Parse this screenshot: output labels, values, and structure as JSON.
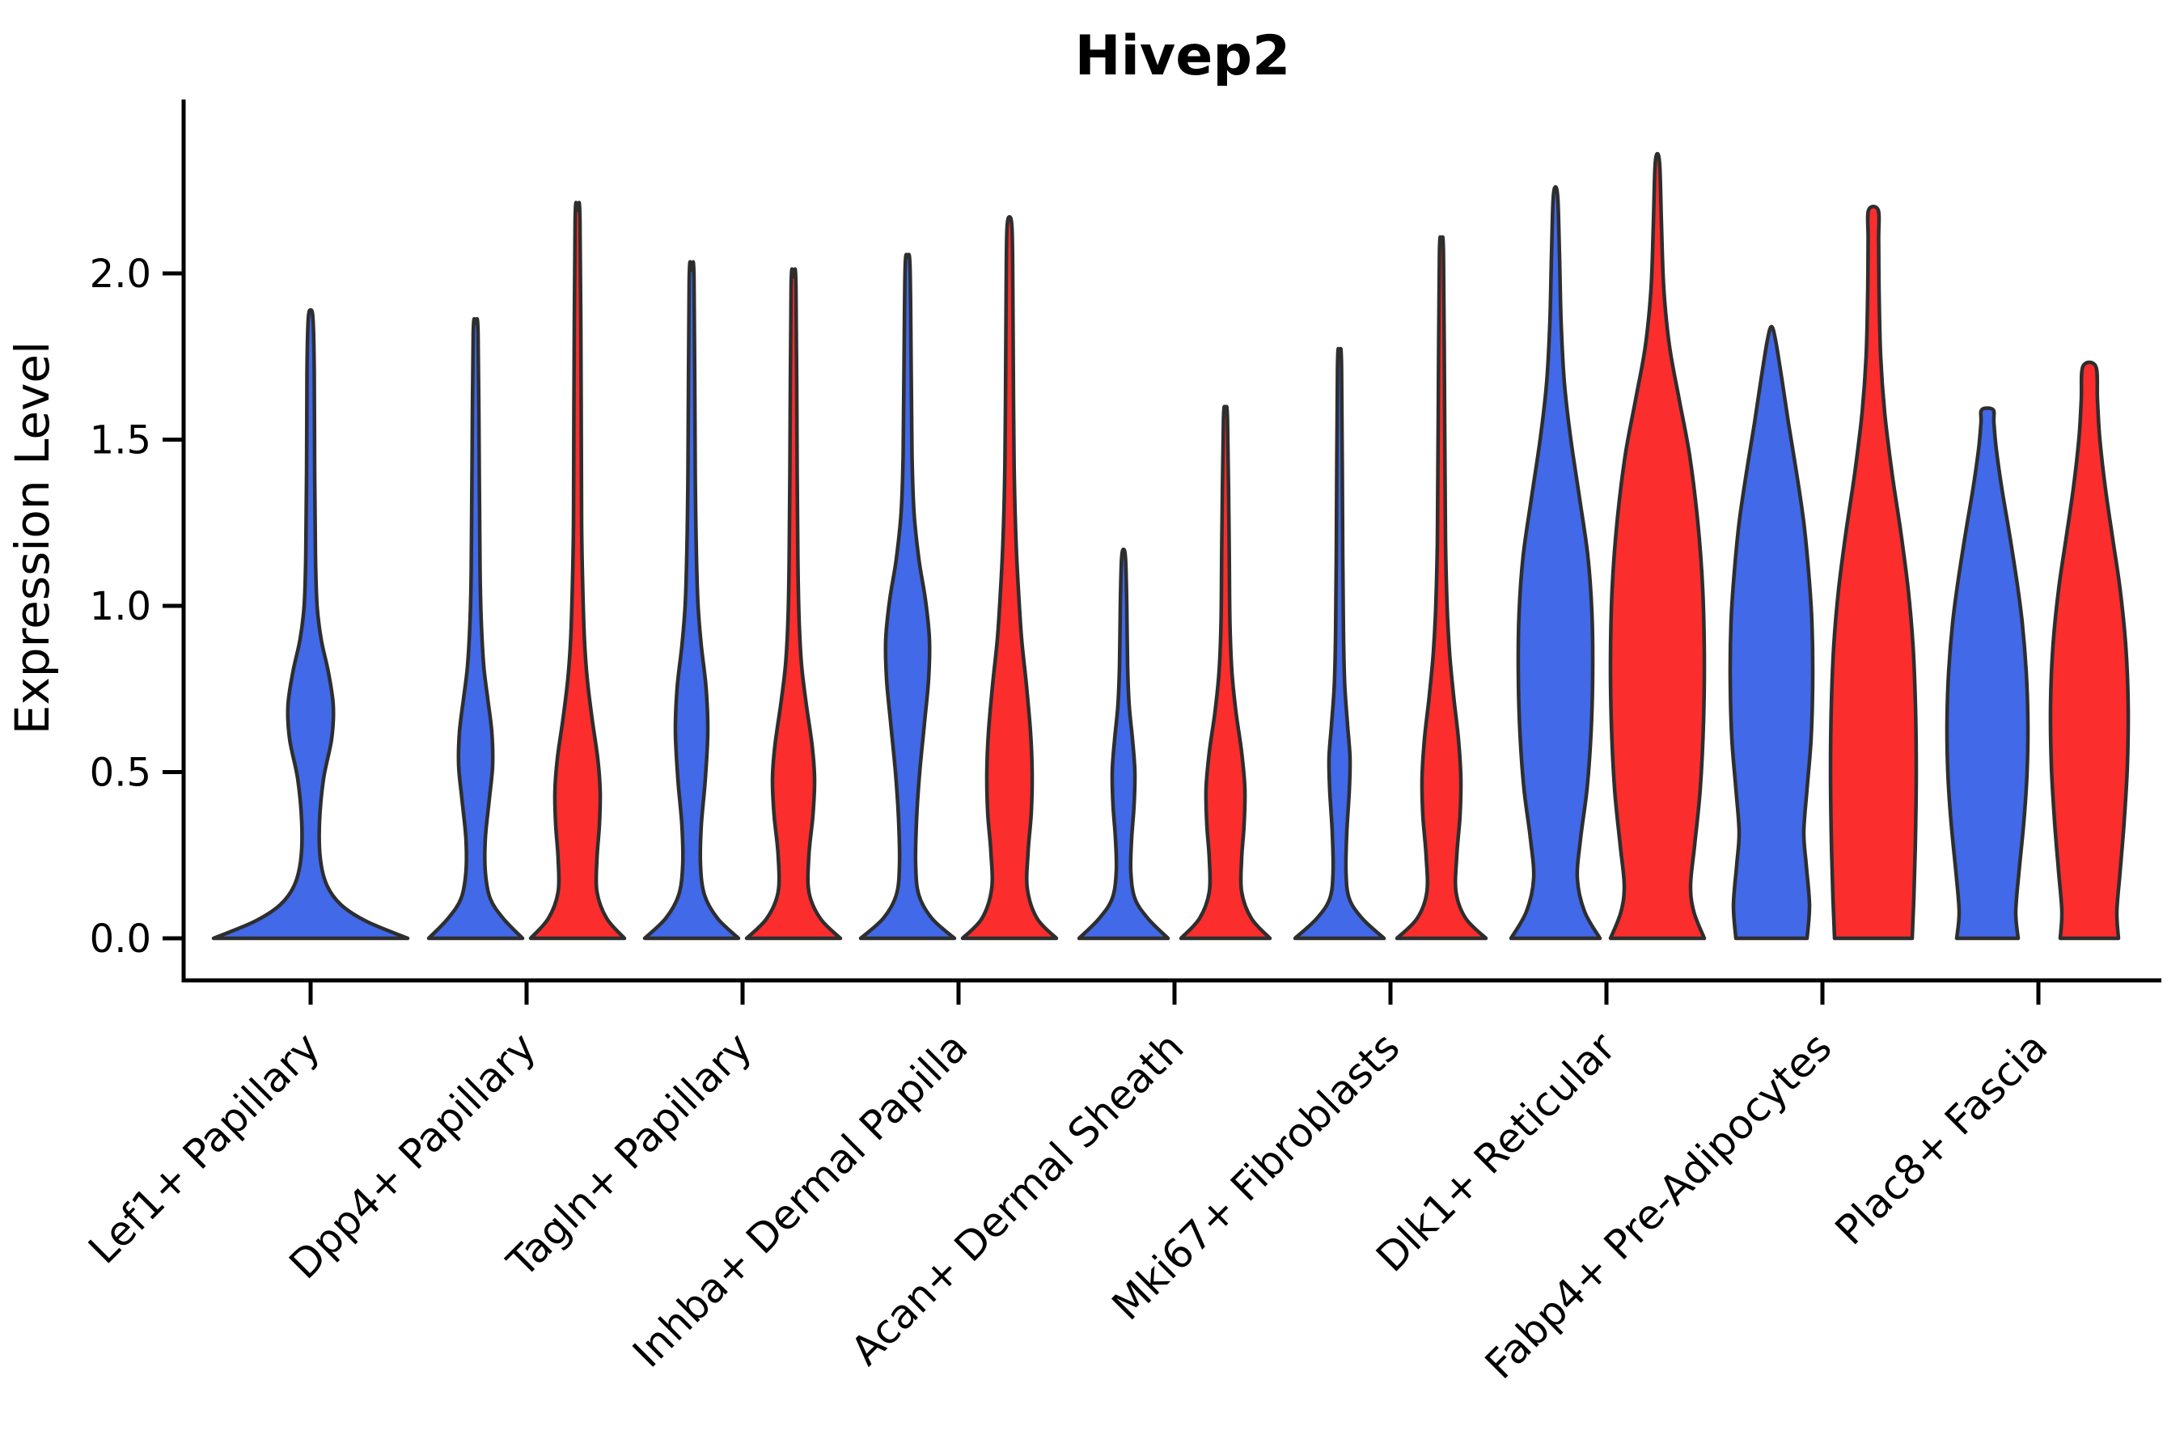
{
  "chart_data": {
    "type": "violin",
    "title": "Hivep2",
    "xlabel": "",
    "ylabel": "Expression Level",
    "ylim": [
      -0.13,
      2.53
    ],
    "grid": false,
    "legend": "none",
    "yticks": [
      {
        "value": 0.0,
        "label": "0.0"
      },
      {
        "value": 0.5,
        "label": "0.5"
      },
      {
        "value": 1.0,
        "label": "1.0"
      },
      {
        "value": 1.5,
        "label": "1.5"
      },
      {
        "value": 2.0,
        "label": "2.0"
      }
    ],
    "categories": [
      "Lef1+ Papillary",
      "Dpp4+ Papillary",
      "Tagln+ Papillary",
      "Inhba+ Dermal Papilla",
      "Acan+ Dermal Sheath",
      "Mki67+ Fibroblasts",
      "Dlk1+ Reticular",
      "Fabp4+ Pre-Adipocytes",
      "Plac8+ Fascia"
    ],
    "groups": [
      {
        "id": "blue",
        "color": "#4169E8"
      },
      {
        "id": "red",
        "color": "#FB2D2D"
      }
    ],
    "violins": [
      {
        "category": "Lef1+ Papillary",
        "group": "blue",
        "solo": true,
        "max": 1.89,
        "cap": "point",
        "profile": [
          [
            0,
            120
          ],
          [
            0.05,
            70
          ],
          [
            0.1,
            38
          ],
          [
            0.16,
            20
          ],
          [
            0.24,
            12
          ],
          [
            0.35,
            11
          ],
          [
            0.48,
            16
          ],
          [
            0.6,
            26
          ],
          [
            0.7,
            28
          ],
          [
            0.8,
            22
          ],
          [
            0.9,
            13
          ],
          [
            1.0,
            8
          ],
          [
            1.15,
            6
          ],
          [
            1.4,
            5
          ],
          [
            1.7,
            4.5
          ],
          [
            1.86,
            3
          ],
          [
            1.89,
            0
          ]
        ]
      },
      {
        "category": "Dpp4+ Papillary",
        "group": "blue",
        "solo": false,
        "max": 1.85,
        "cap": "point",
        "profile": [
          [
            0,
            58
          ],
          [
            0.06,
            34
          ],
          [
            0.12,
            18
          ],
          [
            0.2,
            12
          ],
          [
            0.3,
            12
          ],
          [
            0.42,
            17
          ],
          [
            0.52,
            21
          ],
          [
            0.62,
            20
          ],
          [
            0.72,
            15
          ],
          [
            0.82,
            10
          ],
          [
            0.95,
            7
          ],
          [
            1.1,
            5.5
          ],
          [
            1.4,
            4.5
          ],
          [
            1.82,
            3
          ],
          [
            1.85,
            0
          ]
        ]
      },
      {
        "category": "Dpp4+ Papillary",
        "group": "red",
        "solo": false,
        "max": 2.19,
        "cap": "point",
        "profile": [
          [
            0,
            58
          ],
          [
            0.06,
            36
          ],
          [
            0.14,
            24
          ],
          [
            0.24,
            24
          ],
          [
            0.34,
            27
          ],
          [
            0.44,
            28
          ],
          [
            0.54,
            25
          ],
          [
            0.66,
            18
          ],
          [
            0.78,
            12
          ],
          [
            0.9,
            8.5
          ],
          [
            1.05,
            6.5
          ],
          [
            1.25,
            5
          ],
          [
            1.6,
            4.5
          ],
          [
            2.16,
            3
          ],
          [
            2.19,
            0
          ]
        ]
      },
      {
        "category": "Tagln+ Papillary",
        "group": "blue",
        "solo": false,
        "max": 2.01,
        "cap": "point",
        "profile": [
          [
            0,
            58
          ],
          [
            0.06,
            32
          ],
          [
            0.13,
            16
          ],
          [
            0.22,
            11
          ],
          [
            0.34,
            12
          ],
          [
            0.48,
            17
          ],
          [
            0.62,
            20
          ],
          [
            0.75,
            18
          ],
          [
            0.88,
            12
          ],
          [
            1.0,
            8
          ],
          [
            1.15,
            6
          ],
          [
            1.4,
            4.5
          ],
          [
            1.98,
            3
          ],
          [
            2.01,
            0
          ]
        ]
      },
      {
        "category": "Tagln+ Papillary",
        "group": "red",
        "solo": false,
        "max": 1.99,
        "cap": "point",
        "profile": [
          [
            0,
            58
          ],
          [
            0.06,
            33
          ],
          [
            0.14,
            19
          ],
          [
            0.25,
            19
          ],
          [
            0.37,
            24
          ],
          [
            0.48,
            26
          ],
          [
            0.58,
            23
          ],
          [
            0.7,
            16
          ],
          [
            0.82,
            10
          ],
          [
            0.95,
            7
          ],
          [
            1.12,
            5.5
          ],
          [
            1.4,
            4.5
          ],
          [
            1.96,
            3
          ],
          [
            1.99,
            0
          ]
        ]
      },
      {
        "category": "Inhba+ Dermal Papilla",
        "group": "blue",
        "solo": false,
        "max": 2.05,
        "cap": "point",
        "profile": [
          [
            0,
            58
          ],
          [
            0.06,
            30
          ],
          [
            0.13,
            14
          ],
          [
            0.22,
            10
          ],
          [
            0.35,
            11
          ],
          [
            0.5,
            15
          ],
          [
            0.65,
            21
          ],
          [
            0.78,
            26
          ],
          [
            0.9,
            27
          ],
          [
            1.02,
            22
          ],
          [
            1.14,
            14
          ],
          [
            1.28,
            8
          ],
          [
            1.45,
            5.5
          ],
          [
            1.7,
            4.5
          ],
          [
            2.02,
            3
          ],
          [
            2.05,
            0
          ]
        ]
      },
      {
        "category": "Inhba+ Dermal Papilla",
        "group": "red",
        "solo": false,
        "max": 2.17,
        "cap": "point",
        "profile": [
          [
            0,
            58
          ],
          [
            0.06,
            34
          ],
          [
            0.15,
            22
          ],
          [
            0.26,
            23
          ],
          [
            0.38,
            27
          ],
          [
            0.5,
            28
          ],
          [
            0.62,
            26
          ],
          [
            0.76,
            21
          ],
          [
            0.9,
            15
          ],
          [
            1.05,
            11
          ],
          [
            1.2,
            8
          ],
          [
            1.38,
            6
          ],
          [
            1.6,
            5
          ],
          [
            2.0,
            4
          ],
          [
            2.14,
            3
          ],
          [
            2.17,
            0
          ]
        ]
      },
      {
        "category": "Acan+ Dermal Sheath",
        "group": "blue",
        "solo": false,
        "max": 1.17,
        "cap": "point",
        "profile": [
          [
            0,
            55
          ],
          [
            0.06,
            30
          ],
          [
            0.12,
            14
          ],
          [
            0.2,
            9
          ],
          [
            0.3,
            10
          ],
          [
            0.4,
            13
          ],
          [
            0.5,
            14
          ],
          [
            0.6,
            11
          ],
          [
            0.7,
            7
          ],
          [
            0.82,
            5
          ],
          [
            1.0,
            4
          ],
          [
            1.14,
            2.5
          ],
          [
            1.17,
            0
          ]
        ]
      },
      {
        "category": "Acan+ Dermal Sheath",
        "group": "red",
        "solo": false,
        "max": 1.59,
        "cap": "point",
        "profile": [
          [
            0,
            55
          ],
          [
            0.06,
            32
          ],
          [
            0.14,
            20
          ],
          [
            0.24,
            20
          ],
          [
            0.34,
            23
          ],
          [
            0.45,
            24
          ],
          [
            0.56,
            20
          ],
          [
            0.68,
            13
          ],
          [
            0.8,
            8
          ],
          [
            0.95,
            5.5
          ],
          [
            1.2,
            4.5
          ],
          [
            1.56,
            2.5
          ],
          [
            1.59,
            0
          ]
        ]
      },
      {
        "category": "Mki67+ Fibroblasts",
        "group": "blue",
        "solo": false,
        "max": 1.75,
        "cap": "point",
        "profile": [
          [
            0,
            55
          ],
          [
            0.06,
            28
          ],
          [
            0.12,
            12
          ],
          [
            0.2,
            8
          ],
          [
            0.32,
            9
          ],
          [
            0.44,
            12
          ],
          [
            0.54,
            13
          ],
          [
            0.64,
            10
          ],
          [
            0.76,
            6.5
          ],
          [
            0.9,
            5
          ],
          [
            1.15,
            4
          ],
          [
            1.72,
            2.5
          ],
          [
            1.75,
            0
          ]
        ]
      },
      {
        "category": "Mki67+ Fibroblasts",
        "group": "red",
        "solo": false,
        "max": 2.09,
        "cap": "point",
        "profile": [
          [
            0,
            55
          ],
          [
            0.06,
            30
          ],
          [
            0.14,
            18
          ],
          [
            0.25,
            19
          ],
          [
            0.37,
            23
          ],
          [
            0.48,
            24
          ],
          [
            0.6,
            21
          ],
          [
            0.73,
            15
          ],
          [
            0.86,
            10
          ],
          [
            1.0,
            7
          ],
          [
            1.2,
            5
          ],
          [
            1.55,
            4
          ],
          [
            2.06,
            2.5
          ],
          [
            2.09,
            0
          ]
        ]
      },
      {
        "category": "Dlk1+ Reticular",
        "group": "blue",
        "solo": false,
        "max": 2.26,
        "cap": "point",
        "profile": [
          [
            0,
            55
          ],
          [
            0.08,
            36
          ],
          [
            0.18,
            27
          ],
          [
            0.3,
            31
          ],
          [
            0.45,
            39
          ],
          [
            0.62,
            44
          ],
          [
            0.8,
            46
          ],
          [
            0.98,
            45
          ],
          [
            1.15,
            40
          ],
          [
            1.32,
            30
          ],
          [
            1.5,
            19
          ],
          [
            1.67,
            11
          ],
          [
            1.85,
            7
          ],
          [
            2.05,
            5
          ],
          [
            2.22,
            3
          ],
          [
            2.26,
            0
          ]
        ]
      },
      {
        "category": "Dlk1+ Reticular",
        "group": "red",
        "solo": false,
        "max": 2.36,
        "cap": "point",
        "profile": [
          [
            0,
            58
          ],
          [
            0.08,
            45
          ],
          [
            0.16,
            41
          ],
          [
            0.28,
            46
          ],
          [
            0.45,
            53
          ],
          [
            0.65,
            57
          ],
          [
            0.85,
            58
          ],
          [
            1.05,
            56
          ],
          [
            1.25,
            50
          ],
          [
            1.45,
            40
          ],
          [
            1.62,
            27
          ],
          [
            1.78,
            15
          ],
          [
            1.95,
            8
          ],
          [
            2.15,
            5
          ],
          [
            2.32,
            3
          ],
          [
            2.36,
            0
          ]
        ]
      },
      {
        "category": "Fabp4+ Pre-Adipocytes",
        "group": "blue",
        "solo": false,
        "max": 1.84,
        "cap": "point",
        "profile": [
          [
            0,
            44
          ],
          [
            0.1,
            47
          ],
          [
            0.22,
            43
          ],
          [
            0.32,
            40
          ],
          [
            0.45,
            44
          ],
          [
            0.6,
            49
          ],
          [
            0.78,
            51
          ],
          [
            0.95,
            50
          ],
          [
            1.1,
            46
          ],
          [
            1.25,
            40
          ],
          [
            1.4,
            31
          ],
          [
            1.55,
            21
          ],
          [
            1.68,
            13
          ],
          [
            1.8,
            5
          ],
          [
            1.84,
            0
          ]
        ]
      },
      {
        "category": "Fabp4+ Pre-Adipocytes",
        "group": "red",
        "solo": false,
        "max": 2.19,
        "cap": "blunt",
        "profile": [
          [
            0,
            48
          ],
          [
            0.12,
            50
          ],
          [
            0.3,
            52
          ],
          [
            0.5,
            53
          ],
          [
            0.7,
            52
          ],
          [
            0.88,
            49
          ],
          [
            1.05,
            43
          ],
          [
            1.22,
            34
          ],
          [
            1.4,
            23
          ],
          [
            1.58,
            14
          ],
          [
            1.75,
            9
          ],
          [
            1.95,
            7
          ],
          [
            2.1,
            6.5
          ],
          [
            2.19,
            6
          ]
        ]
      },
      {
        "category": "Plac8+ Fascia",
        "group": "blue",
        "solo": false,
        "max": 1.59,
        "cap": "blunt",
        "profile": [
          [
            0,
            38
          ],
          [
            0.08,
            35
          ],
          [
            0.2,
            39
          ],
          [
            0.35,
            45
          ],
          [
            0.5,
            49
          ],
          [
            0.65,
            50
          ],
          [
            0.8,
            48
          ],
          [
            0.95,
            43
          ],
          [
            1.08,
            36
          ],
          [
            1.22,
            27
          ],
          [
            1.35,
            18
          ],
          [
            1.47,
            11
          ],
          [
            1.55,
            8
          ],
          [
            1.59,
            7
          ]
        ]
      },
      {
        "category": "Plac8+ Fascia",
        "group": "red",
        "solo": false,
        "max": 1.72,
        "cap": "blunt",
        "profile": [
          [
            0,
            36
          ],
          [
            0.08,
            34
          ],
          [
            0.2,
            38
          ],
          [
            0.35,
            43
          ],
          [
            0.52,
            47
          ],
          [
            0.7,
            48
          ],
          [
            0.88,
            45
          ],
          [
            1.05,
            38
          ],
          [
            1.2,
            29
          ],
          [
            1.35,
            20
          ],
          [
            1.5,
            13
          ],
          [
            1.62,
            10
          ],
          [
            1.72,
            8
          ]
        ]
      }
    ]
  }
}
